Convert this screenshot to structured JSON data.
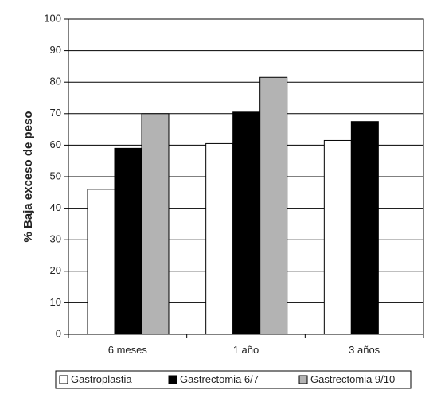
{
  "chart_data": {
    "type": "bar",
    "title": "",
    "xlabel": "",
    "ylabel": "% Baja exceso de peso",
    "ylim": [
      0,
      100
    ],
    "yticks": [
      0,
      10,
      20,
      30,
      40,
      50,
      60,
      70,
      80,
      90,
      100
    ],
    "categories": [
      "6 meses",
      "1 año",
      "3 años"
    ],
    "series": [
      {
        "name": "Gastroplastia",
        "color": "#ffffff",
        "values": [
          46,
          60.5,
          61.5
        ]
      },
      {
        "name": "Gastrectomia 6/7",
        "color": "#000000",
        "values": [
          59,
          70.5,
          67.5
        ]
      },
      {
        "name": "Gastrectomia 9/10",
        "color": "#b3b3b3",
        "values": [
          70,
          81.5,
          null
        ]
      }
    ],
    "grid": true,
    "legend_position": "bottom"
  }
}
